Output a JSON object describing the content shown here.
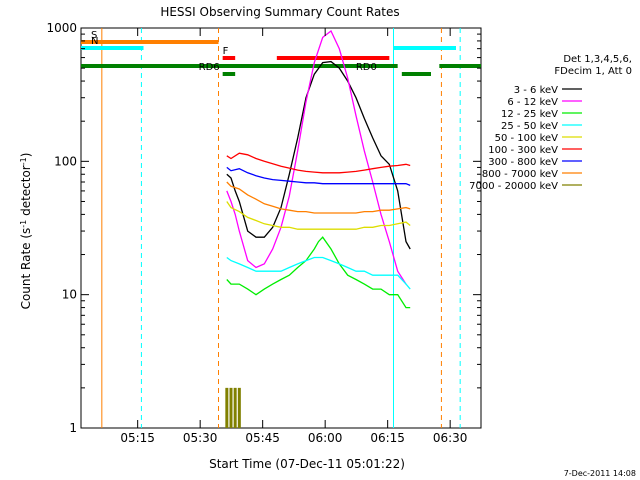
{
  "chart_data": {
    "type": "line",
    "title": "HESSI Observing Summary Count Rates",
    "xlabel": "Start Time (07-Dec-11 05:01:22)",
    "ylabel_main": "Count Rate (s",
    "ylabel_sup": "-1",
    "ylabel_mid": " detector",
    "ylabel_sup2": "-1",
    "ylabel_end": ")",
    "y_scale": "log",
    "ylim": [
      1,
      1000
    ],
    "xlim_minutes": [
      0,
      96
    ],
    "x_ticks": [
      {
        "label": "05:15",
        "minutes": 13.6
      },
      {
        "label": "05:30",
        "minutes": 28.6
      },
      {
        "label": "05:45",
        "minutes": 43.6
      },
      {
        "label": "06:00",
        "minutes": 58.6
      },
      {
        "label": "06:15",
        "minutes": 73.6
      },
      {
        "label": "06:30",
        "minutes": 88.6
      }
    ],
    "y_ticks": [
      {
        "label": "1",
        "value": 1
      },
      {
        "label": "10",
        "value": 10
      },
      {
        "label": "100",
        "value": 100
      },
      {
        "label": "1000",
        "value": 1000
      }
    ],
    "legend_header": [
      "Det 1,3,4,5,6,",
      "FDecim 1, Att 0"
    ],
    "series": [
      {
        "name": "3 - 6 keV",
        "color": "#000000",
        "x": [
          35,
          36,
          37,
          38,
          40,
          42,
          44,
          46,
          48,
          50,
          52,
          54,
          56,
          58,
          60,
          62,
          64,
          66,
          68,
          70,
          72,
          74,
          76,
          78,
          79
        ],
        "y": [
          80,
          75,
          60,
          50,
          30,
          27,
          27,
          32,
          45,
          80,
          150,
          300,
          450,
          550,
          560,
          500,
          400,
          300,
          210,
          150,
          110,
          95,
          60,
          25,
          22
        ]
      },
      {
        "name": "6 - 12 keV",
        "color": "#ff00ff",
        "x": [
          35,
          36,
          37,
          38,
          40,
          42,
          44,
          46,
          48,
          50,
          52,
          54,
          56,
          58,
          60,
          62,
          64,
          66,
          68,
          70,
          72,
          74,
          76,
          78
        ],
        "y": [
          60,
          50,
          40,
          30,
          18,
          16,
          17,
          22,
          32,
          55,
          120,
          280,
          550,
          850,
          950,
          700,
          420,
          220,
          120,
          70,
          40,
          25,
          15,
          12
        ]
      },
      {
        "name": "12 - 25 keV",
        "color": "#00ee00",
        "x": [
          35,
          36,
          38,
          40,
          42,
          44,
          46,
          48,
          50,
          52,
          54,
          56,
          57,
          58,
          60,
          62,
          64,
          66,
          68,
          70,
          72,
          74,
          76,
          78,
          79
        ],
        "y": [
          13,
          12,
          12,
          11,
          10,
          11,
          12,
          13,
          14,
          16,
          18,
          22,
          25,
          27,
          22,
          17,
          14,
          13,
          12,
          11,
          11,
          10,
          10,
          8,
          8
        ]
      },
      {
        "name": "25 - 50 keV",
        "color": "#00ffff",
        "x": [
          35,
          36,
          38,
          40,
          42,
          44,
          46,
          48,
          50,
          52,
          54,
          56,
          58,
          60,
          62,
          64,
          66,
          68,
          70,
          72,
          74,
          76,
          78,
          79
        ],
        "y": [
          19,
          18,
          17,
          16,
          15,
          15,
          15,
          15,
          16,
          17,
          18,
          19,
          19,
          18,
          17,
          16,
          15,
          15,
          14,
          14,
          14,
          14,
          12,
          11
        ]
      },
      {
        "name": "50 - 100 keV",
        "color": "#dddd00",
        "x": [
          35,
          36,
          38,
          40,
          42,
          44,
          46,
          48,
          50,
          52,
          54,
          56,
          58,
          60,
          62,
          64,
          66,
          68,
          70,
          72,
          74,
          76,
          78,
          79
        ],
        "y": [
          50,
          45,
          42,
          38,
          36,
          34,
          33,
          32,
          32,
          31,
          31,
          31,
          31,
          31,
          31,
          31,
          31,
          32,
          32,
          33,
          33,
          34,
          35,
          33
        ]
      },
      {
        "name": "100 - 300 keV",
        "color": "#ff0000",
        "x": [
          35,
          36,
          38,
          40,
          42,
          44,
          46,
          48,
          50,
          52,
          54,
          56,
          58,
          60,
          62,
          64,
          66,
          68,
          70,
          72,
          74,
          76,
          78,
          79
        ],
        "y": [
          110,
          105,
          115,
          112,
          105,
          100,
          96,
          92,
          89,
          86,
          84,
          83,
          82,
          82,
          82,
          83,
          84,
          86,
          88,
          90,
          92,
          93,
          95,
          93
        ]
      },
      {
        "name": "300 - 800 keV",
        "color": "#0000ff",
        "x": [
          35,
          36,
          38,
          40,
          42,
          44,
          46,
          48,
          50,
          52,
          54,
          56,
          58,
          60,
          62,
          64,
          66,
          68,
          70,
          72,
          74,
          76,
          78,
          79
        ],
        "y": [
          90,
          85,
          88,
          82,
          78,
          75,
          73,
          72,
          71,
          70,
          69,
          69,
          68,
          68,
          68,
          68,
          68,
          68,
          68,
          68,
          68,
          68,
          68,
          66
        ]
      },
      {
        "name": "800 - 7000 keV",
        "color": "#ff7f00",
        "x": [
          35,
          36,
          38,
          40,
          42,
          44,
          46,
          48,
          50,
          52,
          54,
          56,
          58,
          60,
          62,
          64,
          66,
          68,
          70,
          72,
          74,
          76,
          78,
          79
        ],
        "y": [
          70,
          65,
          62,
          56,
          52,
          48,
          46,
          44,
          43,
          42,
          42,
          41,
          41,
          41,
          41,
          41,
          41,
          42,
          42,
          43,
          43,
          44,
          45,
          44
        ]
      },
      {
        "name": "7000 - 20000 keV",
        "color": "#808000",
        "x": [
          35,
          36,
          37,
          38
        ],
        "y": [
          2,
          2,
          2,
          2
        ]
      }
    ],
    "state_bars": [
      {
        "label": "S",
        "color": "#ff7f00",
        "x0": 0,
        "x1": 33
      },
      {
        "label": "N",
        "color": "#00ffff",
        "x0": 0,
        "x1": 15
      },
      {
        "label": "",
        "color": "#00ffff",
        "x0": 75,
        "x1": 90
      },
      {
        "label": "F",
        "color": "#ff0000",
        "x0": 34,
        "x1": 37
      },
      {
        "label": "",
        "color": "#ff0000",
        "x0": 47,
        "x1": 74
      },
      {
        "label": "",
        "color": "#008000",
        "x0": 0,
        "x1": 76
      },
      {
        "label": "",
        "color": "#008000",
        "x0": 86,
        "x1": 96
      },
      {
        "label": "RD0",
        "color": "#008000",
        "x0": 77,
        "x1": 84
      },
      {
        "label": "RD6",
        "color": "#008000",
        "x0": 34,
        "x1": 37
      }
    ],
    "vlines": [
      {
        "minutes": 5,
        "color": "#ff7f00",
        "style": "solid"
      },
      {
        "minutes": 14.5,
        "color": "#00ffff",
        "style": "dashed"
      },
      {
        "minutes": 33,
        "color": "#ff7f00",
        "style": "dashed"
      },
      {
        "minutes": 75,
        "color": "#00ffff",
        "style": "solid"
      },
      {
        "minutes": 91,
        "color": "#00ffff",
        "style": "dashed"
      },
      {
        "minutes": 86.5,
        "color": "#ff7f00",
        "style": "dashed"
      }
    ],
    "footer_date": "7-Dec-2011 14:08"
  }
}
